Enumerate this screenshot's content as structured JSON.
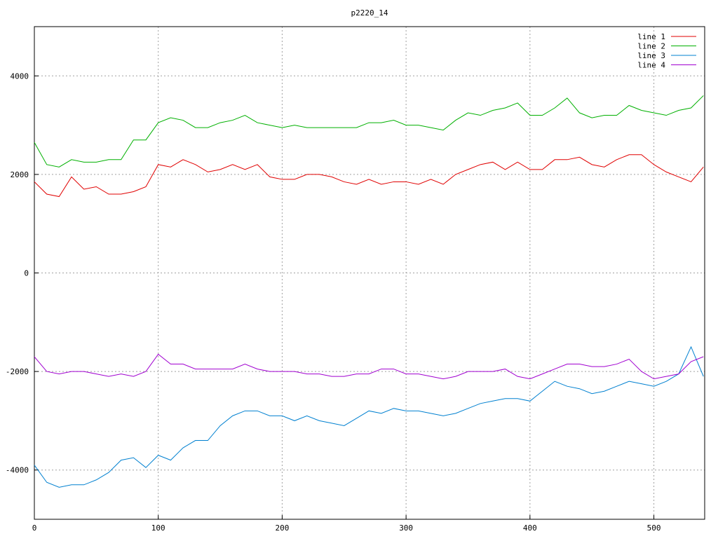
{
  "chart_data": {
    "type": "line",
    "title": "p2220_14",
    "x": [
      0,
      10,
      20,
      30,
      40,
      50,
      60,
      70,
      80,
      90,
      100,
      110,
      120,
      130,
      140,
      150,
      160,
      170,
      180,
      190,
      200,
      210,
      220,
      230,
      240,
      250,
      260,
      270,
      280,
      290,
      300,
      310,
      320,
      330,
      340,
      350,
      360,
      370,
      380,
      390,
      400,
      410,
      420,
      430,
      440,
      450,
      460,
      470,
      480,
      490,
      500,
      510,
      520,
      530,
      540
    ],
    "series": [
      {
        "name": "line 1",
        "color": "#e00000",
        "values": [
          1850,
          1600,
          1550,
          1950,
          1700,
          1750,
          1600,
          1600,
          1650,
          1750,
          2200,
          2150,
          2300,
          2200,
          2050,
          2100,
          2200,
          2100,
          2200,
          1950,
          1900,
          1900,
          2000,
          2000,
          1950,
          1850,
          1800,
          1900,
          1800,
          1850,
          1850,
          1800,
          1900,
          1800,
          2000,
          2100,
          2200,
          2250,
          2100,
          2250,
          2100,
          2100,
          2300,
          2300,
          2350,
          2200,
          2150,
          2300,
          2400,
          2400,
          2200,
          2050,
          1950,
          1850,
          2150
        ]
      },
      {
        "name": "line 2",
        "color": "#00b000",
        "values": [
          2650,
          2200,
          2150,
          2300,
          2250,
          2250,
          2300,
          2300,
          2700,
          2700,
          3050,
          3150,
          3100,
          2950,
          2950,
          3050,
          3100,
          3200,
          3050,
          3000,
          2950,
          3000,
          2950,
          2950,
          2950,
          2950,
          2950,
          3050,
          3050,
          3100,
          3000,
          3000,
          2950,
          2900,
          3100,
          3250,
          3200,
          3300,
          3350,
          3450,
          3200,
          3200,
          3350,
          3550,
          3250,
          3150,
          3200,
          3200,
          3400,
          3300,
          3250,
          3200,
          3300,
          3350,
          3600
        ]
      },
      {
        "name": "line 3",
        "color": "#0080d0",
        "values": [
          -3900,
          -4250,
          -4350,
          -4300,
          -4300,
          -4200,
          -4050,
          -3800,
          -3750,
          -3950,
          -3700,
          -3800,
          -3550,
          -3400,
          -3400,
          -3100,
          -2900,
          -2800,
          -2800,
          -2900,
          -2900,
          -3000,
          -2900,
          -3000,
          -3050,
          -3100,
          -2950,
          -2800,
          -2850,
          -2750,
          -2800,
          -2800,
          -2850,
          -2900,
          -2850,
          -2750,
          -2650,
          -2600,
          -2550,
          -2550,
          -2600,
          -2400,
          -2200,
          -2300,
          -2350,
          -2450,
          -2400,
          -2300,
          -2200,
          -2250,
          -2300,
          -2200,
          -2050,
          -1500,
          -2100
        ]
      },
      {
        "name": "line 4",
        "color": "#a000d0",
        "values": [
          -1700,
          -2000,
          -2050,
          -2000,
          -2000,
          -2050,
          -2100,
          -2050,
          -2100,
          -2000,
          -1650,
          -1850,
          -1850,
          -1950,
          -1950,
          -1950,
          -1950,
          -1850,
          -1950,
          -2000,
          -2000,
          -2000,
          -2050,
          -2050,
          -2100,
          -2100,
          -2050,
          -2050,
          -1950,
          -1950,
          -2050,
          -2050,
          -2100,
          -2150,
          -2100,
          -2000,
          -2000,
          -2000,
          -1950,
          -2100,
          -2150,
          -2050,
          -1950,
          -1850,
          -1850,
          -1900,
          -1900,
          -1850,
          -1750,
          -2000,
          -2150,
          -2100,
          -2050,
          -1800,
          -1700
        ]
      }
    ],
    "xlim": [
      0,
      541
    ],
    "ylim": [
      -5000,
      5000
    ],
    "xticks": [
      0,
      100,
      200,
      300,
      400,
      500
    ],
    "yticks": [
      -4000,
      -2000,
      0,
      2000,
      4000
    ],
    "grid": true,
    "legend": "top-right"
  }
}
